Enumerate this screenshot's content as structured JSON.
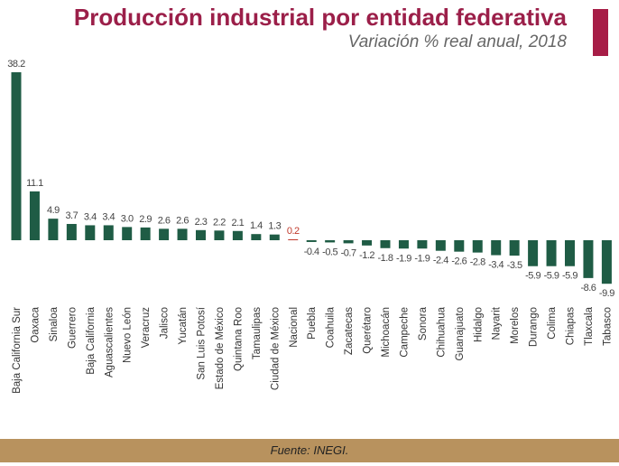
{
  "chart_data": {
    "type": "bar",
    "title": "Producción industrial por entidad federativa",
    "subtitle": "Variación % real anual, 2018",
    "categories": [
      "Baja California Sur",
      "Oaxaca",
      "Sinaloa",
      "Guerrero",
      "Baja California",
      "Aguascalientes",
      "Nuevo León",
      "Veracruz",
      "Jalisco",
      "Yucatán",
      "San Luis Potosí",
      "Estado de México",
      "Quintana Roo",
      "Tamaulipas",
      "Ciudad de México",
      "Nacional",
      "Puebla",
      "Coahuila",
      "Zacatecas",
      "Querétaro",
      "Michoacán",
      "Campeche",
      "Sonora",
      "Chihuahua",
      "Guanajuato",
      "Hidalgo",
      "Nayarit",
      "Morelos",
      "Durango",
      "Colima",
      "Chiapas",
      "Tlaxcala",
      "Tabasco"
    ],
    "values": [
      38.2,
      11.1,
      4.9,
      3.7,
      3.4,
      3.4,
      3.0,
      2.9,
      2.6,
      2.6,
      2.3,
      2.2,
      2.1,
      1.4,
      1.3,
      0.2,
      -0.4,
      -0.5,
      -0.7,
      -1.2,
      -1.8,
      -1.9,
      -1.9,
      -2.4,
      -2.6,
      -2.8,
      -3.4,
      -3.5,
      -5.9,
      -5.9,
      -5.9,
      -8.6,
      -9.9
    ],
    "highlight_category": "Nacional",
    "colors": {
      "bar": "#1f5c45",
      "highlight": "#c0392b",
      "title": "#9b1f49",
      "footer": "#b8925e"
    },
    "grid": false,
    "legend": "none"
  },
  "footer": {
    "source": "Fuente: INEGI."
  }
}
